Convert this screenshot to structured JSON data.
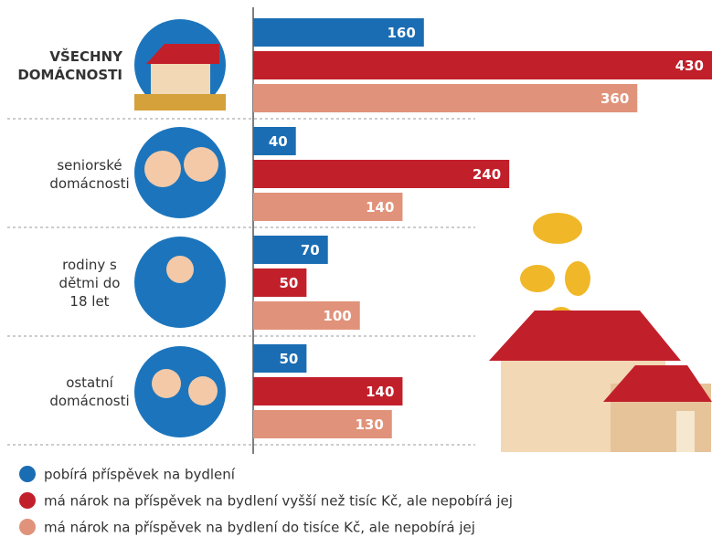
{
  "chart_data": {
    "type": "bar",
    "orientation": "horizontal",
    "categories": [
      "VŠECHNY DOMÁCNOSTI",
      "seniorské domácnosti",
      "rodiny s dětmi do 18 let",
      "ostatní domácnosti"
    ],
    "series": [
      {
        "name": "pobírá příspěvek na bydlení",
        "color": "#1b6db3",
        "values": [
          160,
          40,
          70,
          50
        ]
      },
      {
        "name": "má nárok na příspěvek na bydlení vyšší než tisíc Kč, ale nepobírá jej",
        "color": "#c1202b",
        "values": [
          430,
          240,
          50,
          140
        ]
      },
      {
        "name": "má nárok na příspěvek na bydlení do tisíce Kč, ale nepobírá jej",
        "color": "#e0937a",
        "values": [
          360,
          140,
          100,
          130
        ]
      }
    ],
    "legend": "bottom"
  }
}
